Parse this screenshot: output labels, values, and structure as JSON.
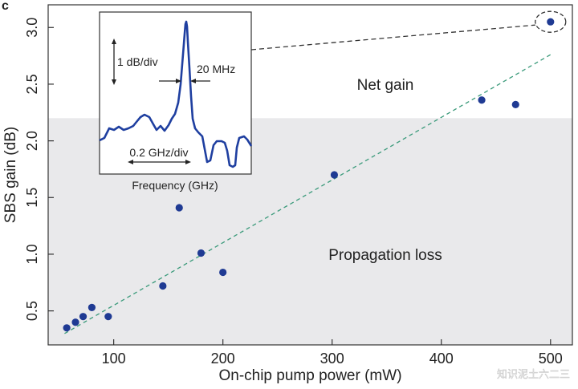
{
  "chart_data": {
    "type": "scatter",
    "panel_letter": "c",
    "xlabel": "On-chip pump power (mW)",
    "ylabel": "SBS gain (dB)",
    "xlim": [
      40,
      520
    ],
    "ylim": [
      0.2,
      3.2
    ],
    "xticks": [
      100,
      200,
      300,
      400,
      500
    ],
    "yticks": [
      0.5,
      1.0,
      1.5,
      2.0,
      2.5,
      3.0
    ],
    "xtick_labels": [
      "100",
      "200",
      "300",
      "400",
      "500"
    ],
    "ytick_labels": [
      "0.5",
      "1.0",
      "1.5",
      "2.0",
      "2.5",
      "3.0"
    ],
    "grid": false,
    "propagation_loss_level": 2.2,
    "region_labels": {
      "net_gain": "Net gain",
      "loss": "Propagation loss"
    },
    "colors": {
      "point": "#1f3a93",
      "fit": "#3a9a7a",
      "loss_region": "#e9e9eb",
      "inset_trace": "#1f3fa0"
    },
    "series": [
      {
        "points": [
          {
            "x": 57,
            "y": 0.35
          },
          {
            "x": 65,
            "y": 0.4
          },
          {
            "x": 72,
            "y": 0.45
          },
          {
            "x": 80,
            "y": 0.53
          },
          {
            "x": 95,
            "y": 0.45
          },
          {
            "x": 145,
            "y": 0.72
          },
          {
            "x": 160,
            "y": 1.41
          },
          {
            "x": 180,
            "y": 1.01
          },
          {
            "x": 200,
            "y": 0.84
          },
          {
            "x": 302,
            "y": 1.7
          },
          {
            "x": 437,
            "y": 2.36
          },
          {
            "x": 468,
            "y": 2.32
          },
          {
            "x": 500,
            "y": 3.05
          }
        ]
      }
    ],
    "fit_line": {
      "x": [
        55,
        500
      ],
      "y": [
        0.3,
        2.76
      ]
    },
    "highlighted_point": {
      "x": 500,
      "y": 3.05
    },
    "inset": {
      "xlabel": "Frequency (GHz)",
      "vertical_scale": "1 dB/div",
      "linewidth_label": "20 MHz",
      "horizontal_scale": "0.2 GHz/div"
    },
    "watermark": "知识泥土六二三"
  }
}
